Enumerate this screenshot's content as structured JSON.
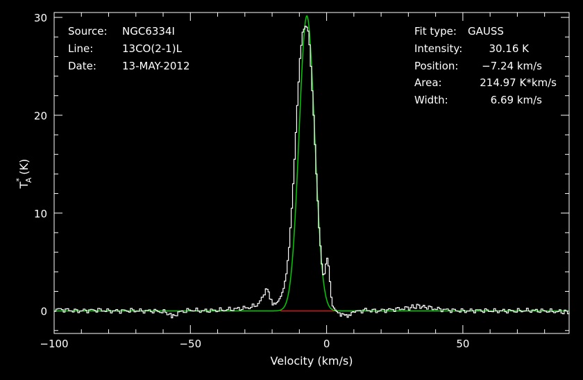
{
  "chart_data": {
    "type": "line",
    "xlabel": "Velocity (km/s)",
    "ylabel": {
      "base": "T",
      "sub": "A",
      "sup": "*",
      "unit": "(K)"
    },
    "xlim": [
      -100,
      89
    ],
    "ylim": [
      -2.3,
      30.5
    ],
    "xticks_major": [
      -100,
      -50,
      0,
      50
    ],
    "xtick_labels": [
      "−100",
      "−50",
      "0",
      "50"
    ],
    "yticks_major": [
      0,
      10,
      20,
      30
    ],
    "ytick_labels": [
      "0",
      "10",
      "20",
      "30"
    ],
    "grid": false,
    "colors": {
      "observed": "#ffffff",
      "fit": "#00d000",
      "baseline": "#d01818",
      "background": "#000000"
    },
    "info_left": [
      {
        "key": "Source:",
        "value": "NGC6334I"
      },
      {
        "key": "Line:",
        "value": "13CO(2-1)L"
      },
      {
        "key": "Date:",
        "value": "13-MAY-2012"
      }
    ],
    "info_right": [
      {
        "key": "Fit type:",
        "value": "GAUSS"
      },
      {
        "key": "Intensity:",
        "value": "30.16 K"
      },
      {
        "key": "Position:",
        "value": "−7.24 km/s"
      },
      {
        "key": "Area:",
        "value": "214.97 K*km/s"
      },
      {
        "key": "Width:",
        "value": "6.69 km/s"
      }
    ],
    "series": [
      {
        "kind": "observed-spectrum-step",
        "x": [
          -100,
          -96,
          -92,
          -88,
          -84,
          -80,
          -76,
          -72,
          -68,
          -64,
          -60,
          -58,
          -57,
          -56,
          -54,
          -50,
          -46,
          -42,
          -38,
          -34,
          -30,
          -28,
          -26,
          -24,
          -22.5,
          -21.5,
          -21,
          -20,
          -19,
          -18,
          -17,
          -16,
          -15,
          -14,
          -13,
          -12,
          -11,
          -10,
          -9,
          -8,
          -7.5,
          -7,
          -6.5,
          -6,
          -5,
          -4,
          -3,
          -2,
          -1.5,
          -1,
          -0.5,
          0,
          0.5,
          1,
          1.5,
          2,
          3,
          4,
          5,
          6,
          7,
          8,
          9,
          10,
          12,
          14,
          18,
          22,
          26,
          30,
          33,
          36,
          40,
          44,
          50,
          56,
          62,
          68,
          74,
          80,
          86,
          89
        ],
        "y": [
          0.2,
          0.1,
          0.0,
          0.05,
          0.1,
          0.0,
          0.0,
          0.05,
          0.0,
          0.0,
          -0.1,
          -0.3,
          -0.6,
          -0.4,
          -0.1,
          0.1,
          0.0,
          0.05,
          0.1,
          0.2,
          0.3,
          0.4,
          0.6,
          1.2,
          2.3,
          1.9,
          1.3,
          0.8,
          0.7,
          1.0,
          1.5,
          2.3,
          3.8,
          6.5,
          10.5,
          15.5,
          21.0,
          25.8,
          28.5,
          29.1,
          29.0,
          28.6,
          27.2,
          25.0,
          20.0,
          14.0,
          8.5,
          4.8,
          3.7,
          3.8,
          4.8,
          5.4,
          4.6,
          3.0,
          1.4,
          0.5,
          0.1,
          -0.2,
          -0.3,
          -0.2,
          -0.4,
          -0.5,
          -0.2,
          -0.1,
          0.0,
          0.1,
          0.0,
          0.1,
          0.2,
          0.3,
          0.5,
          0.4,
          0.2,
          0.1,
          0.0,
          0.05,
          0.0,
          0.0,
          0.05,
          0.0,
          -0.1,
          -0.1
        ]
      },
      {
        "kind": "gaussian-fit",
        "amplitude": 30.16,
        "center": -7.24,
        "fwhm": 6.69
      },
      {
        "kind": "baseline-segment",
        "x": [
          -17,
          3
        ],
        "y": [
          0,
          0
        ]
      }
    ]
  }
}
